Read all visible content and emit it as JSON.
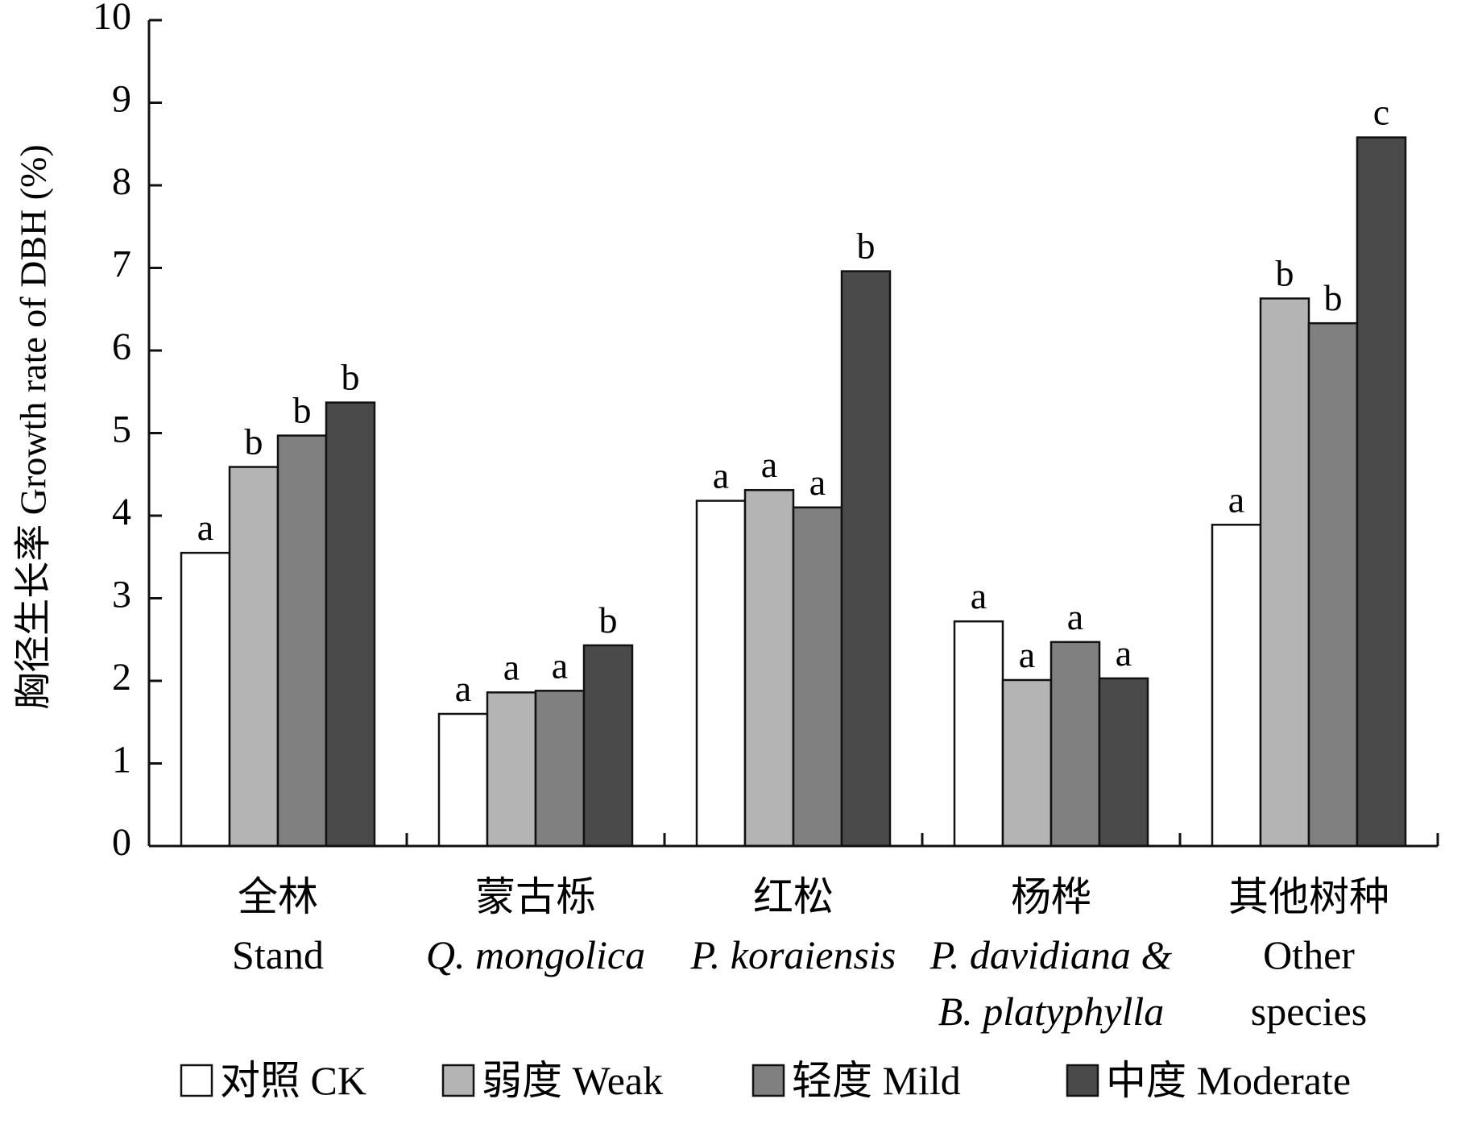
{
  "chart_data": {
    "type": "bar",
    "ylabel": "胸径生长率  Growth rate of DBH (%)",
    "ylim": [
      0,
      10
    ],
    "yticks": [
      "0",
      "1",
      "2",
      "3",
      "4",
      "5",
      "6",
      "7",
      "8",
      "9",
      "10"
    ],
    "categories": [
      {
        "zh": "全林",
        "en": [
          "Stand"
        ],
        "italic": false
      },
      {
        "zh": "蒙古栎",
        "en": [
          "Q. mongolica"
        ],
        "italic": true
      },
      {
        "zh": "红松",
        "en": [
          "P. koraiensis"
        ],
        "italic": true
      },
      {
        "zh": "杨桦",
        "en": [
          "P. davidiana &",
          "B. platyphylla"
        ],
        "italic": true
      },
      {
        "zh": "其他树种",
        "en": [
          "Other",
          "species"
        ],
        "italic": false
      }
    ],
    "series": [
      {
        "name": "对照  CK",
        "color": "#ffffff",
        "values": [
          3.55,
          1.6,
          4.18,
          2.72,
          3.89
        ],
        "labels": [
          "a",
          "a",
          "a",
          "a",
          "a"
        ]
      },
      {
        "name": "弱度  Weak",
        "color": "#b4b4b4",
        "values": [
          4.59,
          1.86,
          4.31,
          2.01,
          6.63
        ],
        "labels": [
          "b",
          "a",
          "a",
          "a",
          "b"
        ]
      },
      {
        "name": "轻度  Mild",
        "color": "#808080",
        "values": [
          4.97,
          1.88,
          4.1,
          2.47,
          6.33
        ],
        "labels": [
          "b",
          "a",
          "a",
          "a",
          "b"
        ]
      },
      {
        "name": "中度  Moderate",
        "color": "#4a4a4a",
        "values": [
          5.37,
          2.43,
          6.96,
          2.03,
          8.58
        ],
        "labels": [
          "b",
          "b",
          "b",
          "a",
          "c"
        ]
      }
    ],
    "grid": false,
    "legend": "bottom"
  }
}
